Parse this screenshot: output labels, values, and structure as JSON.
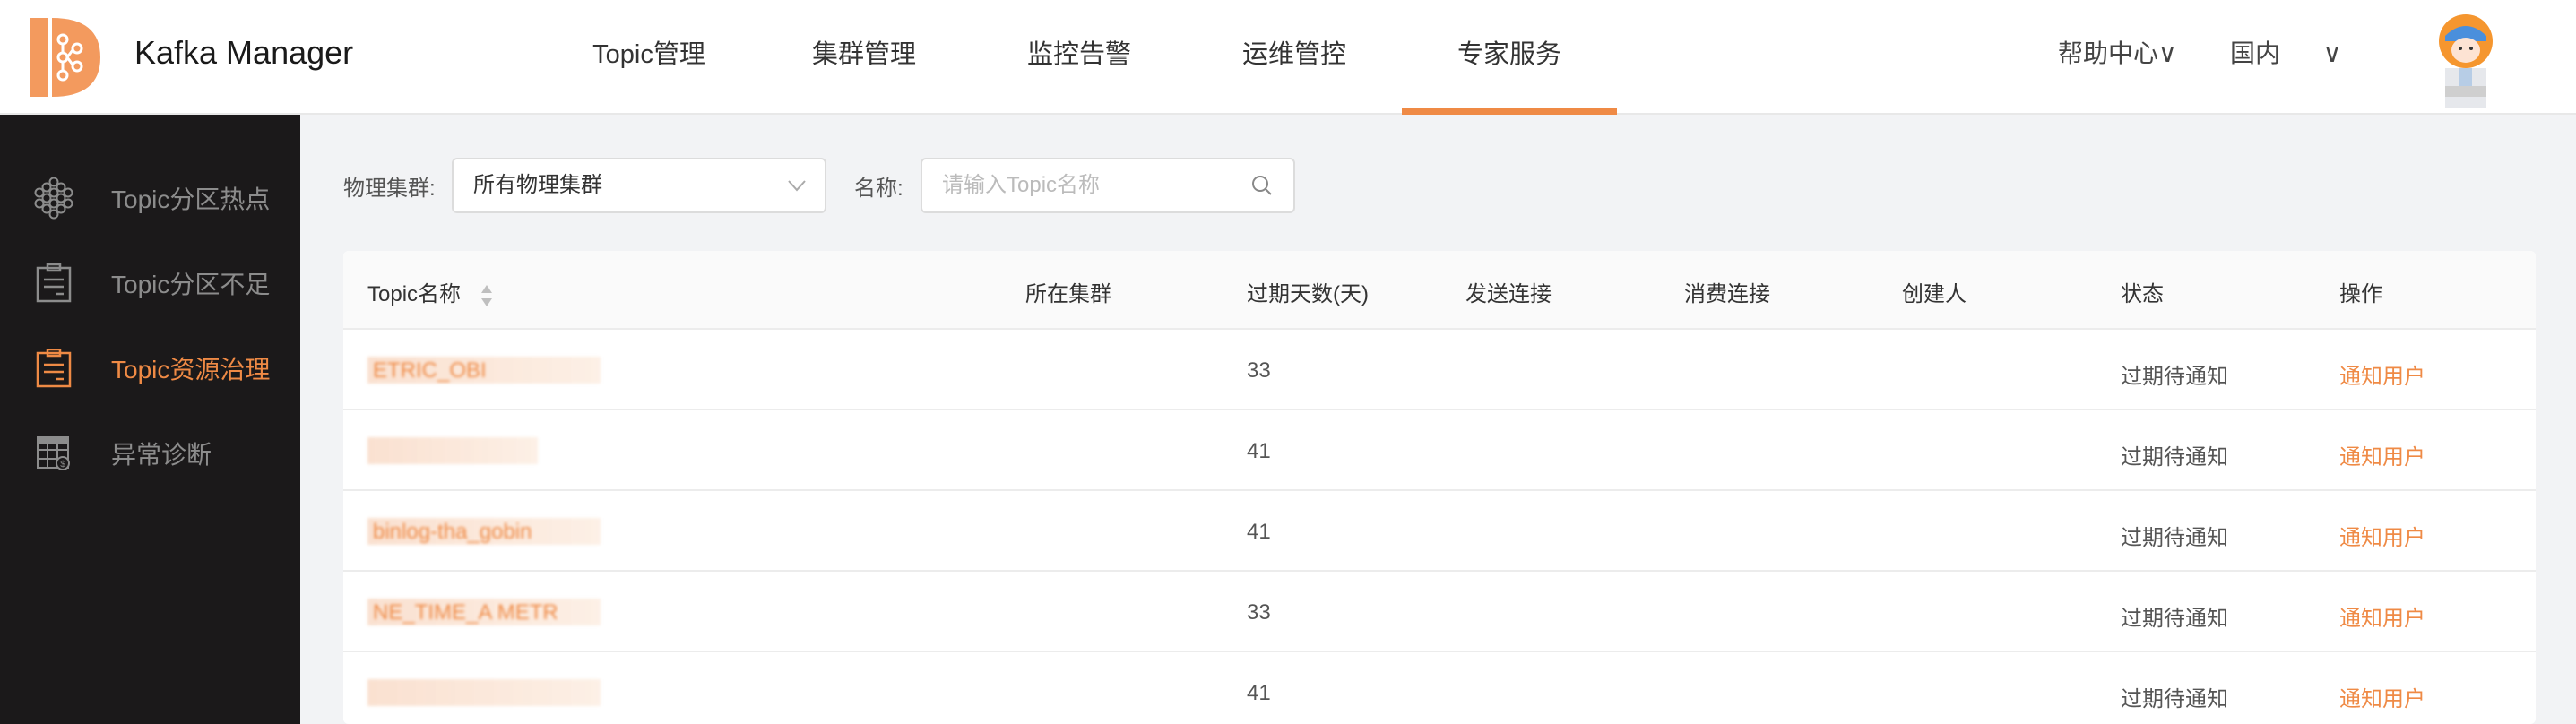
{
  "header": {
    "app_title": "Kafka Manager",
    "nav": [
      {
        "label": "Topic管理"
      },
      {
        "label": "集群管理"
      },
      {
        "label": "监控告警"
      },
      {
        "label": "运维管控"
      },
      {
        "label": "专家服务",
        "active": true
      }
    ],
    "help": "帮助中心∨",
    "region": "国内",
    "region_chevron": "∨",
    "accent": "#ef8a45"
  },
  "sidebar": {
    "items": [
      {
        "label": "Topic分区热点",
        "icon": "honeycomb-icon"
      },
      {
        "label": "Topic分区不足",
        "icon": "clipboard-icon"
      },
      {
        "label": "Topic资源治理",
        "icon": "clipboard-icon",
        "active": true
      },
      {
        "label": "异常诊断",
        "icon": "table-dollar-icon"
      }
    ]
  },
  "filters": {
    "cluster_label": "物理集群:",
    "cluster_value": "所有物理集群",
    "name_label": "名称:",
    "name_placeholder": "请输入Topic名称"
  },
  "table": {
    "columns": [
      "Topic名称",
      "所在集群",
      "过期天数(天)",
      "发送连接",
      "消费连接",
      "创建人",
      "状态",
      "操作"
    ],
    "rows": [
      {
        "topic": "ETRIC_OBI",
        "cluster": "",
        "days": "33",
        "send": "",
        "consume": "",
        "creator": "",
        "status": "过期待通知",
        "action": "通知用户"
      },
      {
        "topic": "",
        "cluster": "",
        "days": "41",
        "send": "",
        "consume": "",
        "creator": "",
        "status": "过期待通知",
        "action": "通知用户"
      },
      {
        "topic": "binlog-tha_gobin",
        "cluster": "",
        "days": "41",
        "send": "",
        "consume": "",
        "creator": "",
        "status": "过期待通知",
        "action": "通知用户"
      },
      {
        "topic": "NE_TIME_A METR",
        "cluster": "",
        "days": "33",
        "send": "",
        "consume": "",
        "creator": "",
        "status": "过期待通知",
        "action": "通知用户"
      },
      {
        "topic": "",
        "cluster": "",
        "days": "41",
        "send": "",
        "consume": "",
        "creator": "",
        "status": "过期待通知",
        "action": "通知用户"
      }
    ]
  }
}
